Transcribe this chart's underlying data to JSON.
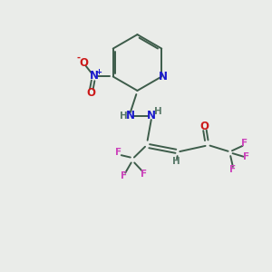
{
  "bg_color": "#eaece9",
  "bond_color": "#3d5c4a",
  "N_color": "#1a1acc",
  "O_color": "#cc1a1a",
  "F_color": "#cc44bb",
  "H_color": "#5a7a6a",
  "figsize": [
    3.0,
    3.0
  ],
  "dpi": 100,
  "lw": 1.4,
  "fs": 8.5,
  "fs_small": 7.5,
  "xlim": [
    0,
    10
  ],
  "ylim": [
    0,
    10
  ]
}
